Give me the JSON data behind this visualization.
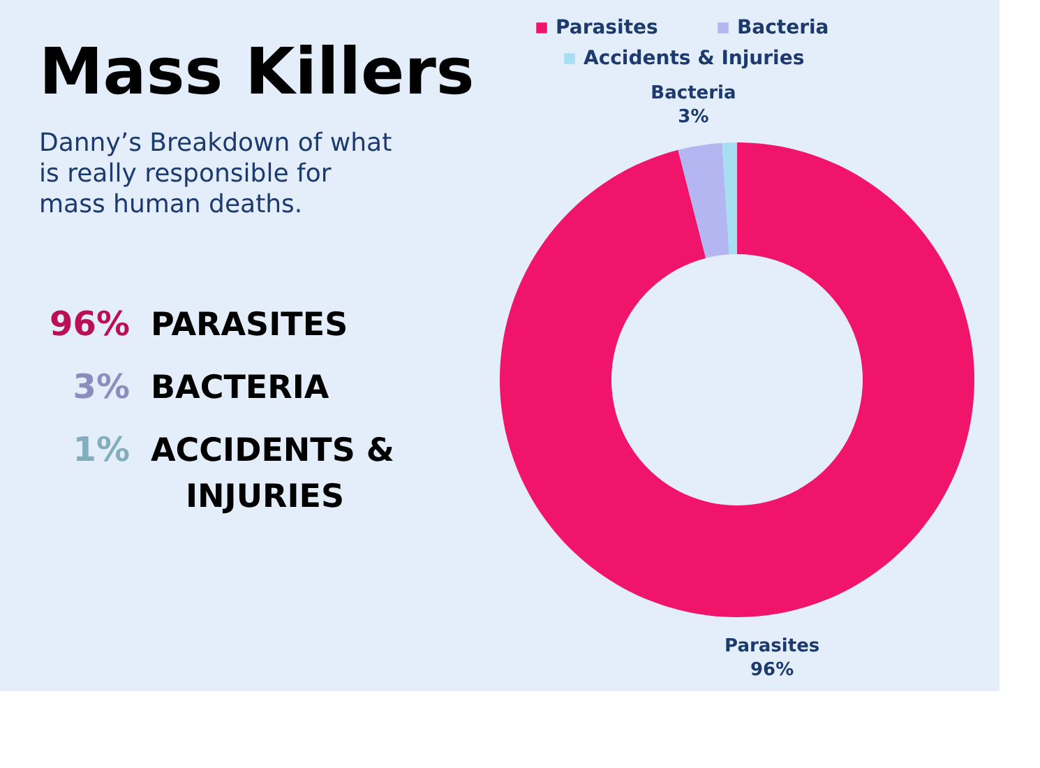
{
  "chart_data": {
    "type": "donut",
    "title": "Mass Killers",
    "subtitle": "Danny’s Breakdown of what is really responsible for mass human deaths.",
    "categories": [
      "Parasites",
      "Bacteria",
      "Accidents & Injuries"
    ],
    "values": [
      96,
      3,
      1
    ],
    "colors": [
      "#f0156b",
      "#b4b6f2",
      "#a6dff2"
    ],
    "value_labels": [
      "96%",
      "3%",
      null
    ],
    "legend": "top",
    "annotations": [
      "96% PARASITES",
      "3% BACTERIA",
      "1% ACCIDENTS & INJURIES"
    ]
  }
}
